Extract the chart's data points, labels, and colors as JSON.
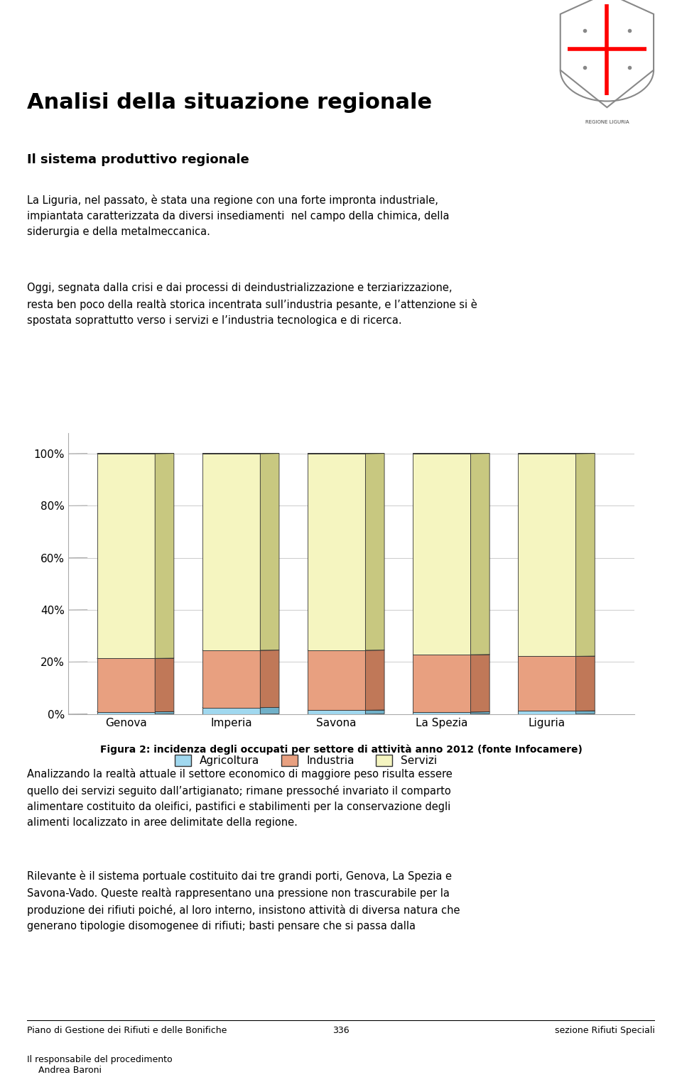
{
  "categories": [
    "Genova",
    "Imperia",
    "Savona",
    "La Spezia",
    "Liguria"
  ],
  "agricoltura": [
    0.9,
    2.5,
    1.5,
    0.8,
    1.2
  ],
  "industria": [
    20.5,
    22.0,
    23.0,
    22.0,
    21.0
  ],
  "servizi": [
    78.6,
    75.5,
    75.5,
    77.2,
    77.8
  ],
  "color_agricoltura": "#a0d8ef",
  "color_industria": "#e8a080",
  "color_servizi": "#f5f5c0",
  "color_3d_agricoltura": "#70b0c8",
  "color_3d_industria": "#c07858",
  "color_3d_servizi": "#c8c880",
  "bar_outline": "#333333",
  "bg_color": "#ffffff",
  "plot_bg": "#ffffff",
  "title_main": "Analisi della situazione regionale",
  "subtitle": "Il sistema produttivo regionale",
  "legend_labels": [
    "Agricoltura",
    "Industria",
    "Servizi"
  ],
  "figure_caption": "Figura 2: incidenza degli occupati per settore di attività anno 2012 (fonte Infocamere)",
  "ylabel_ticks": [
    "0%",
    "20%",
    "40%",
    "60%",
    "80%",
    "100%"
  ],
  "ytick_vals": [
    0,
    20,
    40,
    60,
    80,
    100
  ],
  "header_color": "#F28C00",
  "footer_text_left": "Piano di Gestione dei Rifiuti e delle Bonifiche",
  "footer_text_center": "336",
  "footer_text_right": "sezione Rifiuti Speciali",
  "footer_sub": "Il responsabile del procedimento\n    Andrea Baroni",
  "para1": "La Liguria, nel passato, è stata una regione con una forte impronta industriale,\nimpiantata caratterizzata da diversi insediamenti  nel campo della chimica, della\nsiderurgia e della metalmeccanica.",
  "para2": "Oggi, segnata dalla crisi e dai processi di deindustrializzazione e terziarizzazione,\nresta ben poco della realtà storica incentrata sull’industria pesante, e l’attenzione si è\nspostata soprattutto verso i servizi e l’industria tecnologica e di ricerca.",
  "para3": "Analizzando la realtà attuale il settore economico di maggiore peso risulta essere\nquello dei servizi seguito dall’artigianato; rimane pressoché invariato il comparto\nalimentare costituito da oleifici, pastifici e stabilimenti per la conservazione degli\nalimenti localizzato in aree delimitate della regione.",
  "para4": "Rilevante è il sistema portuale costituito dai tre grandi porti, Genova, La Spezia e\nSavona-Vado. Queste realtà rappresentano una pressione non trascurabile per la\nproduzione dei rifiuti poiché, al loro interno, insistono attività di diversa natura che\ngenerano tipologie disomogenee di rifiuti; basti pensare che si passa dalla"
}
